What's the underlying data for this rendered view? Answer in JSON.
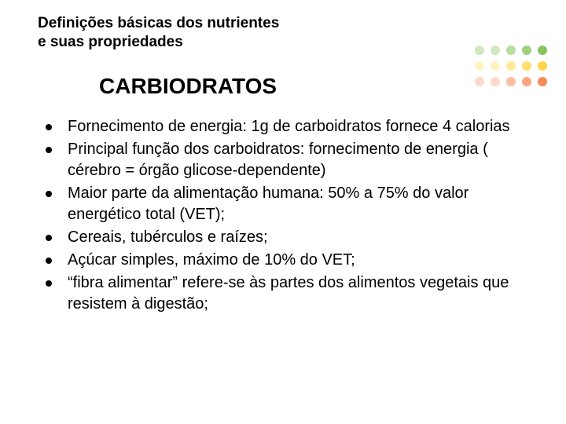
{
  "header": {
    "line1": "Definições básicas dos nutrientes",
    "line2": "e suas propriedades"
  },
  "subtitle": "CARBIODRATOS",
  "items": [
    "Fornecimento de energia: 1g de carboidratos fornece  4 calorias",
    "Principal função dos carboidratos: fornecimento de energia ( cérebro = órgão glicose-dependente)",
    "Maior parte da alimentação humana: 50% a 75% do valor energético total (VET);",
    "Cereais, tubérculos e raízes;",
    "Açúcar simples, máximo de 10% do VET;",
    "“fibra alimentar” refere-se às partes dos alimentos vegetais que resistem à digestão;"
  ],
  "body_fontsize": 20,
  "title_fontsize": 19,
  "subtitle_fontsize": 28,
  "text_color": "#000000",
  "background_color": "#ffffff",
  "bullet_color": "#000000",
  "dot_grid": {
    "rows": 3,
    "cols": 5,
    "dot_size": 12,
    "colors": [
      [
        "#cfe8c2",
        "#cfe8c2",
        "#b7dca0",
        "#9fd07e",
        "#88c45d"
      ],
      [
        "#fff3c2",
        "#fff3c2",
        "#ffe999",
        "#ffdf70",
        "#ffd647"
      ],
      [
        "#fdd9c9",
        "#fdd9c9",
        "#fbbfa3",
        "#f9a57d",
        "#f78b57"
      ]
    ]
  }
}
